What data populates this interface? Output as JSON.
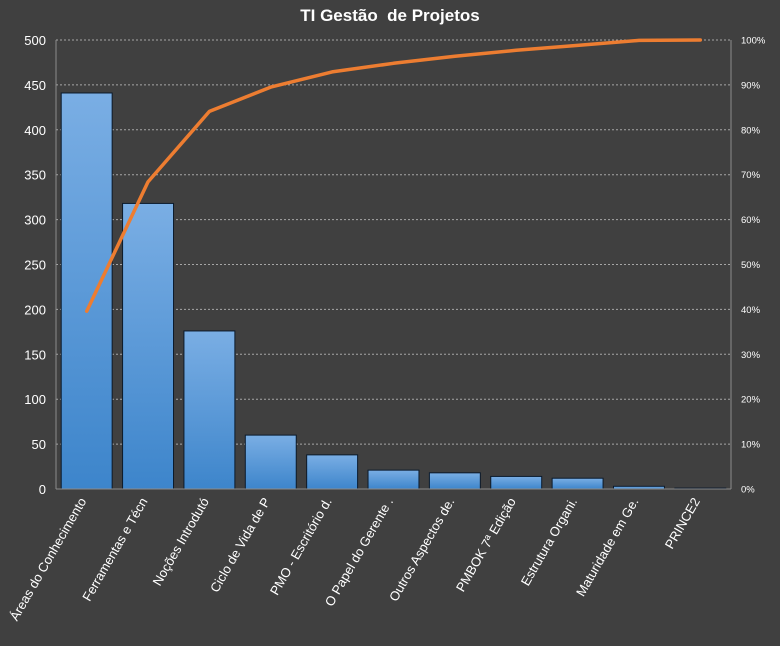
{
  "chart_data": {
    "type": "bar",
    "title": "TI Gestão  de Projetos",
    "xlabel": "",
    "ylabel": "",
    "categories": [
      "Áreas do Conhecimento",
      "Ferramentas e Técn",
      "Noções Introdutó",
      "Ciclo de Vida de P",
      "PMO - Escritório d.",
      "O Papel do Gerente .",
      "Outros Aspectos de.",
      "PMBOK 7ª Edição",
      "Estrutura Organi.",
      "Maturidade em Ge.",
      "PRINCE2"
    ],
    "series": [
      {
        "type": "bar",
        "axis": "left",
        "values": [
          441,
          318,
          176,
          60,
          38,
          21,
          18,
          14,
          12,
          3,
          1
        ]
      },
      {
        "type": "line",
        "axis": "right",
        "values": [
          39.6,
          68.4,
          84.1,
          89.5,
          92.9,
          94.8,
          96.4,
          97.7,
          98.8,
          99.9,
          100
        ]
      }
    ],
    "ylim": [
      0,
      500
    ],
    "yticks": [
      "0",
      "50",
      "100",
      "150",
      "200",
      "250",
      "300",
      "350",
      "400",
      "450",
      "500"
    ],
    "y2lim": [
      0,
      100
    ],
    "y2ticks": [
      "0%",
      "10%",
      "20%",
      "30%",
      "40%",
      "50%",
      "60%",
      "70%",
      "80%",
      "90%",
      "100%"
    ],
    "grid": true,
    "legend": "none",
    "colors": {
      "background": "#404040",
      "bar_top": "#7aaee4",
      "bar_bottom": "#3d85cb",
      "bar_border": "#0b1a2b",
      "line": "#ed7d31",
      "grid": "#a6a6a6",
      "axis": "#8c8c8c",
      "text": "#ffffff"
    }
  }
}
